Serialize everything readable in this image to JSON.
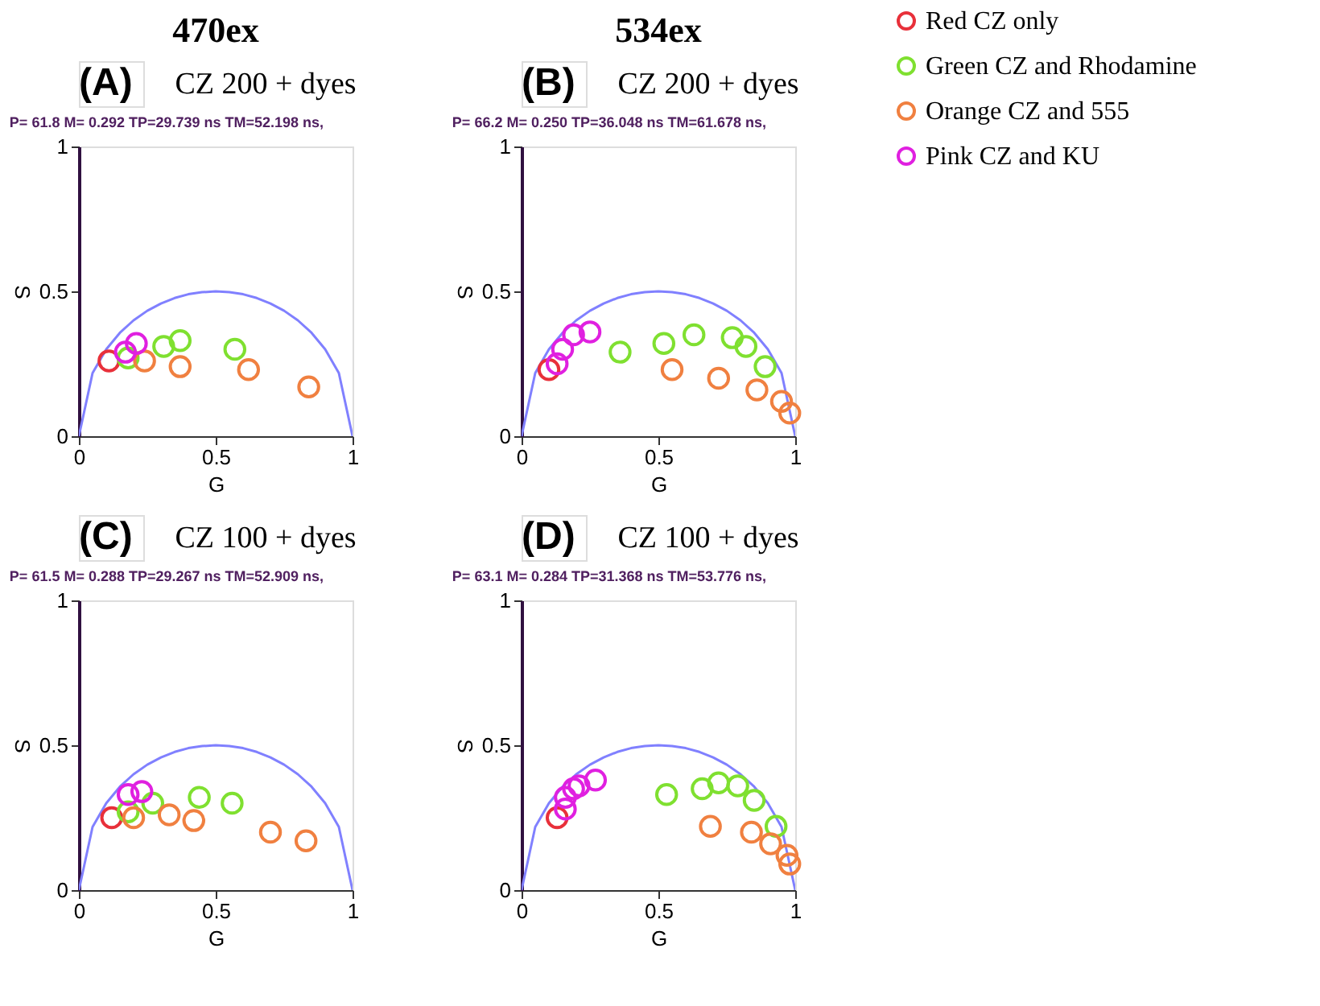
{
  "chart_data": [
    {
      "type": "scatter",
      "title": "CZ 200 + dyes",
      "subtitle": "P= 61.8 M= 0.292 TP=29.739 ns TM=52.198 ns,",
      "annotations": [
        "470ex",
        "(A)"
      ],
      "xlabel": "G",
      "ylabel": "S",
      "xlim": [
        0,
        1
      ],
      "ylim": [
        0,
        1
      ],
      "xticks": [
        0,
        0.5,
        1
      ],
      "yticks": [
        0,
        0.5,
        1
      ],
      "grid": false,
      "legend": false,
      "marker": "circle",
      "series": [
        {
          "type": "line",
          "marker": "none",
          "color": "#8080ff",
          "x": [
            0,
            0.05,
            0.1,
            0.15,
            0.2,
            0.25,
            0.3,
            0.35,
            0.4,
            0.45,
            0.5,
            0.55,
            0.6,
            0.65,
            0.7,
            0.75,
            0.8,
            0.85,
            0.9,
            0.95,
            1
          ],
          "values": [
            0,
            0.218,
            0.3,
            0.357,
            0.4,
            0.433,
            0.458,
            0.477,
            0.49,
            0.497,
            0.5,
            0.497,
            0.49,
            0.477,
            0.458,
            0.433,
            0.4,
            0.357,
            0.3,
            0.218,
            0
          ]
        },
        {
          "color": "#e8303a",
          "x": [
            0.11
          ],
          "values": [
            0.26
          ]
        },
        {
          "color": "#7fe030",
          "x": [
            0.18,
            0.31,
            0.37,
            0.57
          ],
          "values": [
            0.27,
            0.31,
            0.33,
            0.3
          ]
        },
        {
          "color": "#f08040",
          "x": [
            0.24,
            0.37,
            0.62,
            0.84
          ],
          "values": [
            0.26,
            0.24,
            0.23,
            0.17
          ]
        },
        {
          "color": "#e020e0",
          "x": [
            0.17,
            0.21
          ],
          "values": [
            0.29,
            0.32
          ]
        }
      ]
    },
    {
      "type": "scatter",
      "title": "CZ 200 + dyes",
      "subtitle": "P= 66.2 M= 0.250 TP=36.048 ns TM=61.678 ns,",
      "annotations": [
        "534ex",
        "(B)"
      ],
      "xlabel": "G",
      "ylabel": "S",
      "xlim": [
        0,
        1
      ],
      "ylim": [
        0,
        1
      ],
      "xticks": [
        0,
        0.5,
        1
      ],
      "yticks": [
        0,
        0.5,
        1
      ],
      "grid": false,
      "legend": "right",
      "marker": "circle",
      "series": [
        {
          "type": "line",
          "marker": "none",
          "color": "#8080ff",
          "x": [
            0,
            0.05,
            0.1,
            0.15,
            0.2,
            0.25,
            0.3,
            0.35,
            0.4,
            0.45,
            0.5,
            0.55,
            0.6,
            0.65,
            0.7,
            0.75,
            0.8,
            0.85,
            0.9,
            0.95,
            1
          ],
          "values": [
            0,
            0.218,
            0.3,
            0.357,
            0.4,
            0.433,
            0.458,
            0.477,
            0.49,
            0.497,
            0.5,
            0.497,
            0.49,
            0.477,
            0.458,
            0.433,
            0.4,
            0.357,
            0.3,
            0.218,
            0
          ]
        },
        {
          "name": "Red CZ only",
          "color": "#e8303a",
          "x": [
            0.1
          ],
          "values": [
            0.23
          ]
        },
        {
          "name": "Green CZ and Rhodamine",
          "color": "#7fe030",
          "x": [
            0.36,
            0.52,
            0.63,
            0.77,
            0.82,
            0.89
          ],
          "values": [
            0.29,
            0.32,
            0.35,
            0.34,
            0.31,
            0.24
          ]
        },
        {
          "name": "Orange CZ and 555",
          "color": "#f08040",
          "x": [
            0.55,
            0.72,
            0.86,
            0.95,
            0.98
          ],
          "values": [
            0.23,
            0.2,
            0.16,
            0.12,
            0.08
          ]
        },
        {
          "name": "Pink CZ and KU",
          "color": "#e020e0",
          "x": [
            0.13,
            0.15,
            0.19,
            0.25
          ],
          "values": [
            0.25,
            0.3,
            0.35,
            0.36
          ]
        }
      ]
    },
    {
      "type": "scatter",
      "title": "CZ 100 + dyes",
      "subtitle": "P= 61.5 M= 0.288 TP=29.267 ns TM=52.909 ns,",
      "annotations": [
        "(C)"
      ],
      "xlabel": "G",
      "ylabel": "S",
      "xlim": [
        0,
        1
      ],
      "ylim": [
        0,
        1
      ],
      "xticks": [
        0,
        0.5,
        1
      ],
      "yticks": [
        0,
        0.5,
        1
      ],
      "grid": false,
      "legend": false,
      "marker": "circle",
      "series": [
        {
          "type": "line",
          "marker": "none",
          "color": "#8080ff",
          "x": [
            0,
            0.05,
            0.1,
            0.15,
            0.2,
            0.25,
            0.3,
            0.35,
            0.4,
            0.45,
            0.5,
            0.55,
            0.6,
            0.65,
            0.7,
            0.75,
            0.8,
            0.85,
            0.9,
            0.95,
            1
          ],
          "values": [
            0,
            0.218,
            0.3,
            0.357,
            0.4,
            0.433,
            0.458,
            0.477,
            0.49,
            0.497,
            0.5,
            0.497,
            0.49,
            0.477,
            0.458,
            0.433,
            0.4,
            0.357,
            0.3,
            0.218,
            0
          ]
        },
        {
          "color": "#e8303a",
          "x": [
            0.12
          ],
          "values": [
            0.25
          ]
        },
        {
          "color": "#7fe030",
          "x": [
            0.18,
            0.27,
            0.44,
            0.56
          ],
          "values": [
            0.27,
            0.3,
            0.32,
            0.3
          ]
        },
        {
          "color": "#f08040",
          "x": [
            0.2,
            0.33,
            0.42,
            0.7,
            0.83
          ],
          "values": [
            0.25,
            0.26,
            0.24,
            0.2,
            0.17
          ]
        },
        {
          "color": "#e020e0",
          "x": [
            0.18,
            0.23
          ],
          "values": [
            0.33,
            0.34
          ]
        }
      ]
    },
    {
      "type": "scatter",
      "title": "CZ 100 + dyes",
      "subtitle": "P= 63.1 M= 0.284 TP=31.368 ns TM=53.776 ns,",
      "annotations": [
        "(D)"
      ],
      "xlabel": "G",
      "ylabel": "S",
      "xlim": [
        0,
        1
      ],
      "ylim": [
        0,
        1
      ],
      "xticks": [
        0,
        0.5,
        1
      ],
      "yticks": [
        0,
        0.5,
        1
      ],
      "grid": false,
      "legend": false,
      "marker": "circle",
      "series": [
        {
          "type": "line",
          "marker": "none",
          "color": "#8080ff",
          "x": [
            0,
            0.05,
            0.1,
            0.15,
            0.2,
            0.25,
            0.3,
            0.35,
            0.4,
            0.45,
            0.5,
            0.55,
            0.6,
            0.65,
            0.7,
            0.75,
            0.8,
            0.85,
            0.9,
            0.95,
            1
          ],
          "values": [
            0,
            0.218,
            0.3,
            0.357,
            0.4,
            0.433,
            0.458,
            0.477,
            0.49,
            0.497,
            0.5,
            0.497,
            0.49,
            0.477,
            0.458,
            0.433,
            0.4,
            0.357,
            0.3,
            0.218,
            0
          ]
        },
        {
          "color": "#e8303a",
          "x": [
            0.13
          ],
          "values": [
            0.25
          ]
        },
        {
          "color": "#7fe030",
          "x": [
            0.53,
            0.66,
            0.72,
            0.79,
            0.85,
            0.93
          ],
          "values": [
            0.33,
            0.35,
            0.37,
            0.36,
            0.31,
            0.22
          ]
        },
        {
          "color": "#f08040",
          "x": [
            0.69,
            0.84,
            0.91,
            0.97,
            0.98
          ],
          "values": [
            0.22,
            0.2,
            0.16,
            0.12,
            0.09
          ]
        },
        {
          "color": "#e020e0",
          "x": [
            0.16,
            0.16,
            0.19,
            0.21,
            0.27
          ],
          "values": [
            0.28,
            0.32,
            0.35,
            0.36,
            0.38
          ]
        }
      ]
    }
  ]
}
